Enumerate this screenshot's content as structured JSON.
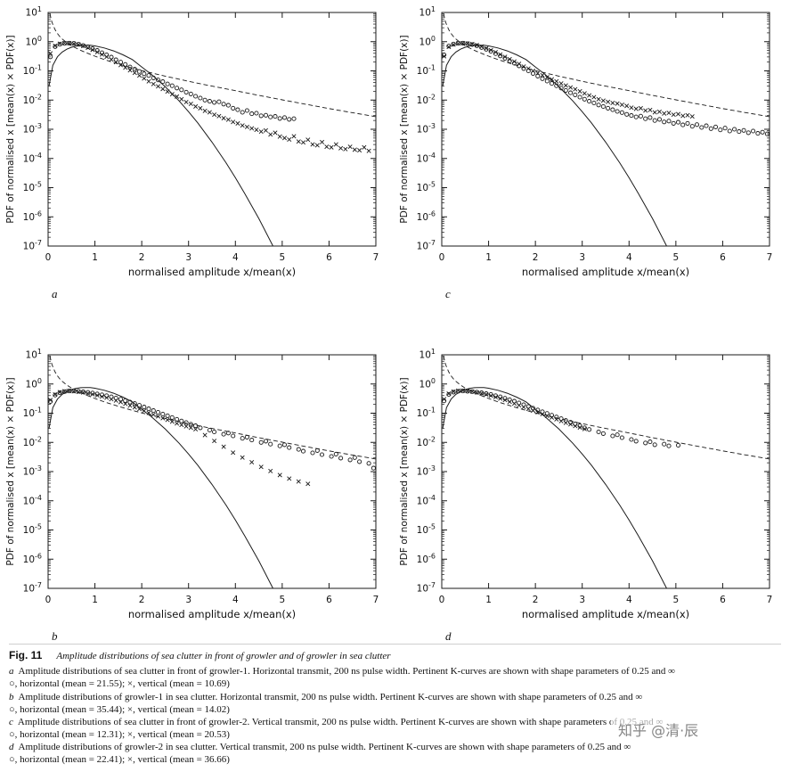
{
  "watermark": "知乎 @清·辰",
  "figure_caption": {
    "fig_label": "Fig. 11",
    "fig_title": "Amplitude distributions of sea clutter in front of growler and of growler in sea clutter",
    "entries": [
      {
        "letter": "a",
        "text": "Amplitude distributions of sea clutter in front of growler-1. Horizontal transmit, 200 ns pulse width. Pertinent K-curves are shown with shape parameters of 0.25 and ∞",
        "means": "○, horizontal (mean = 21.55); ×, vertical (mean = 10.69)"
      },
      {
        "letter": "b",
        "text": "Amplitude distributions of growler-1 in sea clutter. Horizontal transmit, 200 ns pulse width. Pertinent K-curves are shown with shape parameters of 0.25 and ∞",
        "means": "○, horizontal (mean = 35.44); ×, vertical (mean = 14.02)"
      },
      {
        "letter": "c",
        "text": "Amplitude distributions of sea clutter in front of growler-2. Vertical transmit, 200 ns pulse width. Pertinent K-curves are shown with shape parameters of 0.25 and ∞",
        "means": "○, horizontal (mean = 12.31); ×, vertical (mean = 20.53)"
      },
      {
        "letter": "d",
        "text": "Amplitude distributions of growler-2 in sea clutter. Vertical transmit, 200 ns pulse width. Pertinent K-curves are shown with shape parameters of 0.25 and ∞",
        "means": "○, horizontal (mean = 22.41); ×, vertical (mean = 36.66)"
      }
    ]
  },
  "axes": {
    "xlabel": "normalised amplitude x/mean(x)",
    "ylabel": "PDF of normalised x [mean(x) × PDF(x)]",
    "xticks": [
      0,
      1,
      2,
      3,
      4,
      5,
      6,
      7
    ],
    "xlim": [
      0,
      7
    ],
    "ylog_range": [
      -7,
      1
    ],
    "y_exponents": [
      1,
      0,
      -1,
      -2,
      -3,
      -4,
      -5,
      -6,
      -7
    ]
  },
  "chart_data": {
    "type": "scatter",
    "title": "Amplitude distributions of sea clutter in front of growler and of growler in sea clutter",
    "xlabel": "normalised amplitude x/mean(x)",
    "ylabel": "PDF of normalised x [mean(x) × PDF(x)]",
    "x_range": [
      0,
      7
    ],
    "y_log10_range": [
      -7,
      1
    ],
    "grid": false,
    "shared_curves": {
      "k_infinity": {
        "label": "K-curve shape parameter ∞ (Rayleigh)",
        "style": "solid",
        "points": [
          [
            0.02,
            0.031
          ],
          [
            0.1,
            0.155
          ],
          [
            0.2,
            0.304
          ],
          [
            0.3,
            0.44
          ],
          [
            0.4,
            0.554
          ],
          [
            0.5,
            0.645
          ],
          [
            0.6,
            0.71
          ],
          [
            0.7,
            0.748
          ],
          [
            0.8,
            0.76
          ],
          [
            0.9,
            0.75
          ],
          [
            1.0,
            0.716
          ],
          [
            1.2,
            0.611
          ],
          [
            1.4,
            0.482
          ],
          [
            1.6,
            0.355
          ],
          [
            1.8,
            0.245
          ],
          [
            2.0,
            0.136
          ],
          [
            2.2,
            0.0773
          ],
          [
            2.5,
            0.029
          ],
          [
            2.8,
            0.0093
          ],
          [
            3.0,
            0.004
          ],
          [
            3.2,
            0.00162
          ],
          [
            3.5,
            0.000363
          ],
          [
            3.8,
            7.1e-05
          ],
          [
            4.0,
            2.19e-05
          ],
          [
            4.2,
            6.3e-06
          ],
          [
            4.5,
            8.8e-07
          ],
          [
            4.8,
            1.03e-07
          ],
          [
            4.95,
            4e-08
          ]
        ]
      },
      "k_025": {
        "label": "K-curve shape parameter 0.25",
        "style": "dashed",
        "points": [
          [
            0.02,
            16
          ],
          [
            0.04,
            9
          ],
          [
            0.06,
            6.3
          ],
          [
            0.08,
            4.8
          ],
          [
            0.1,
            3.9
          ],
          [
            0.15,
            2.55
          ],
          [
            0.2,
            1.9
          ],
          [
            0.25,
            1.5
          ],
          [
            0.3,
            1.24
          ],
          [
            0.4,
            0.92
          ],
          [
            0.5,
            0.72
          ],
          [
            0.6,
            0.6
          ],
          [
            0.7,
            0.5
          ],
          [
            0.8,
            0.43
          ],
          [
            0.9,
            0.37
          ],
          [
            1.0,
            0.32
          ],
          [
            1.2,
            0.245
          ],
          [
            1.4,
            0.193
          ],
          [
            1.6,
            0.155
          ],
          [
            1.8,
            0.125
          ],
          [
            2.0,
            0.102
          ],
          [
            2.5,
            0.066
          ],
          [
            3.0,
            0.044
          ],
          [
            3.5,
            0.03
          ],
          [
            4.0,
            0.021
          ],
          [
            4.5,
            0.0145
          ],
          [
            5.0,
            0.0102
          ],
          [
            5.5,
            0.0072
          ],
          [
            6.0,
            0.0051
          ],
          [
            6.5,
            0.0037
          ],
          [
            7.0,
            0.0027
          ]
        ]
      }
    },
    "subplots": [
      {
        "id": "a",
        "letter": "a",
        "position": "top-left",
        "description": "sea clutter in front of growler-1, horizontal transmit",
        "series": [
          {
            "name": "horizontal",
            "marker": "circle",
            "mean": 21.55,
            "x_start": 0.05,
            "x_step": 0.1,
            "log10y": [
              -0.52,
              -0.17,
              -0.09,
              -0.06,
              -0.05,
              -0.06,
              -0.09,
              -0.13,
              -0.18,
              -0.24,
              -0.3,
              -0.38,
              -0.45,
              -0.53,
              -0.62,
              -0.7,
              -0.78,
              -0.87,
              -0.94,
              -1.02,
              -1.1,
              -1.16,
              -1.24,
              -1.31,
              -1.37,
              -1.45,
              -1.51,
              -1.59,
              -1.65,
              -1.73,
              -1.79,
              -1.87,
              -1.93,
              -2.0,
              -2.04,
              -2.08,
              -2.06,
              -2.14,
              -2.18,
              -2.28,
              -2.33,
              -2.42,
              -2.36,
              -2.47,
              -2.45,
              -2.54,
              -2.52,
              -2.58,
              -2.56,
              -2.63,
              -2.6,
              -2.66,
              -2.64
            ]
          },
          {
            "name": "vertical",
            "marker": "cross",
            "mean": 10.69,
            "x_start": 0.05,
            "x_step": 0.1,
            "log10y": [
              -0.4,
              -0.14,
              -0.07,
              -0.05,
              -0.05,
              -0.07,
              -0.1,
              -0.15,
              -0.21,
              -0.28,
              -0.36,
              -0.44,
              -0.52,
              -0.61,
              -0.7,
              -0.8,
              -0.89,
              -0.98,
              -1.07,
              -1.16,
              -1.26,
              -1.36,
              -1.45,
              -1.53,
              -1.62,
              -1.71,
              -1.8,
              -1.88,
              -1.97,
              -2.07,
              -2.13,
              -2.22,
              -2.28,
              -2.37,
              -2.42,
              -2.5,
              -2.55,
              -2.62,
              -2.67,
              -2.75,
              -2.8,
              -2.87,
              -2.92,
              -2.97,
              -3.02,
              -3.08,
              -3.04,
              -3.18,
              -3.12,
              -3.25,
              -3.3,
              -3.35,
              -3.24,
              -3.42,
              -3.45,
              -3.36,
              -3.52,
              -3.55,
              -3.44,
              -3.6,
              -3.62,
              -3.52,
              -3.65,
              -3.68,
              -3.6,
              -3.7,
              -3.72,
              -3.62,
              -3.74
            ]
          }
        ]
      },
      {
        "id": "b",
        "letter": "b",
        "position": "bottom-left",
        "description": "growler-1 in sea clutter, horizontal transmit",
        "series": [
          {
            "name": "horizontal",
            "marker": "circle",
            "mean": 35.44,
            "x_start": 0.05,
            "x_step": 0.1,
            "log10y": [
              -0.6,
              -0.38,
              -0.3,
              -0.26,
              -0.24,
              -0.24,
              -0.25,
              -0.27,
              -0.29,
              -0.31,
              -0.34,
              -0.37,
              -0.4,
              -0.44,
              -0.48,
              -0.52,
              -0.57,
              -0.62,
              -0.67,
              -0.73,
              -0.79,
              -0.85,
              -0.91,
              -0.97,
              -1.03,
              -1.09,
              -1.15,
              -1.21,
              -1.27,
              -1.32,
              -1.38,
              -1.43,
              -1.5,
              null,
              -1.58,
              -1.64,
              null,
              -1.72,
              -1.68,
              -1.78,
              null,
              -1.86,
              -1.82,
              -1.92,
              null,
              -2.0,
              -1.96,
              -2.06,
              null,
              -2.12,
              -2.08,
              -2.18,
              null,
              -2.24,
              -2.3,
              null,
              -2.36,
              -2.28,
              -2.42,
              null,
              -2.48,
              -2.4,
              -2.54,
              null,
              -2.6,
              -2.52,
              -2.66,
              null,
              -2.72,
              -2.88
            ]
          },
          {
            "name": "vertical",
            "marker": "cross",
            "mean": 14.02,
            "x_start": 0.05,
            "x_step": 0.1,
            "log10y": [
              -0.55,
              -0.36,
              -0.28,
              -0.25,
              -0.24,
              -0.25,
              -0.27,
              -0.29,
              -0.32,
              -0.35,
              -0.39,
              -0.43,
              -0.47,
              -0.52,
              -0.57,
              -0.62,
              -0.68,
              -0.74,
              -0.8,
              -0.86,
              -0.92,
              -0.99,
              -1.05,
              -1.11,
              -1.17,
              -1.23,
              -1.29,
              -1.35,
              -1.4,
              -1.45,
              -1.5,
              -1.55,
              null,
              -1.75,
              null,
              -1.95,
              null,
              -2.15,
              null,
              -2.35,
              null,
              -2.52,
              null,
              -2.68,
              null,
              -2.84,
              null,
              -2.98,
              null,
              -3.12,
              null,
              -3.24,
              null,
              -3.34,
              null,
              -3.42
            ]
          }
        ]
      },
      {
        "id": "c",
        "letter": "c",
        "position": "top-right",
        "description": "sea clutter in front of growler-2, vertical transmit",
        "series": [
          {
            "name": "horizontal",
            "marker": "circle",
            "mean": 12.31,
            "x_start": 0.05,
            "x_step": 0.1,
            "log10y": [
              -0.45,
              -0.15,
              -0.08,
              -0.05,
              -0.05,
              -0.07,
              -0.1,
              -0.14,
              -0.2,
              -0.26,
              -0.33,
              -0.41,
              -0.49,
              -0.57,
              -0.66,
              -0.74,
              -0.83,
              -0.92,
              -1.0,
              -1.09,
              -1.18,
              -1.27,
              -1.35,
              -1.43,
              -1.51,
              -1.59,
              -1.67,
              -1.75,
              -1.82,
              -1.9,
              -1.97,
              -2.04,
              -2.1,
              -2.17,
              -2.22,
              -2.28,
              -2.33,
              -2.39,
              -2.43,
              -2.49,
              -2.53,
              -2.58,
              -2.55,
              -2.64,
              -2.6,
              -2.7,
              -2.66,
              -2.75,
              -2.72,
              -2.8,
              -2.76,
              -2.85,
              -2.8,
              -2.9,
              -2.84,
              -2.94,
              -2.88,
              -2.98,
              -2.92,
              -3.02,
              -2.96,
              -3.06,
              -3.0,
              -3.08,
              -3.04,
              -3.12,
              -3.06,
              -3.14,
              -3.1,
              -3.16
            ]
          },
          {
            "name": "vertical",
            "marker": "cross",
            "mean": 20.53,
            "x_start": 0.05,
            "x_step": 0.1,
            "log10y": [
              -0.5,
              -0.18,
              -0.1,
              -0.06,
              -0.05,
              -0.06,
              -0.08,
              -0.12,
              -0.17,
              -0.23,
              -0.29,
              -0.36,
              -0.44,
              -0.52,
              -0.6,
              -0.68,
              -0.76,
              -0.85,
              -0.92,
              -1.0,
              -1.08,
              -1.15,
              -1.22,
              -1.29,
              -1.36,
              -1.43,
              -1.5,
              -1.57,
              -1.63,
              -1.7,
              -1.77,
              -1.84,
              -1.9,
              -1.97,
              -2.02,
              -2.06,
              -2.1,
              -2.12,
              -2.16,
              -2.2,
              -2.26,
              -2.3,
              -2.28,
              -2.36,
              -2.34,
              -2.42,
              -2.4,
              -2.46,
              -2.44,
              -2.5,
              -2.48,
              -2.54,
              -2.52,
              -2.56
            ]
          }
        ]
      },
      {
        "id": "d",
        "letter": "d",
        "position": "bottom-right",
        "description": "growler-2 in sea clutter, vertical transmit",
        "series": [
          {
            "name": "horizontal",
            "marker": "circle",
            "mean": 22.41,
            "x_start": 0.05,
            "x_step": 0.1,
            "log10y": [
              -0.58,
              -0.36,
              -0.28,
              -0.25,
              -0.24,
              -0.25,
              -0.26,
              -0.28,
              -0.3,
              -0.33,
              -0.36,
              -0.4,
              -0.44,
              -0.49,
              -0.54,
              -0.59,
              -0.65,
              -0.71,
              -0.77,
              -0.83,
              -0.89,
              -0.95,
              -1.01,
              -1.07,
              -1.13,
              -1.19,
              -1.25,
              -1.31,
              -1.37,
              -1.43,
              -1.5,
              -1.56,
              null,
              -1.64,
              -1.7,
              null,
              -1.78,
              -1.74,
              -1.84,
              null,
              -1.9,
              -1.96,
              null,
              -2.02,
              -1.98,
              -2.08,
              null,
              -2.06,
              -2.12,
              null,
              -2.1
            ]
          },
          {
            "name": "vertical",
            "marker": "cross",
            "mean": 36.66,
            "x_start": 0.05,
            "x_step": 0.1,
            "log10y": [
              -0.52,
              -0.33,
              -0.26,
              -0.23,
              -0.23,
              -0.24,
              -0.26,
              -0.29,
              -0.32,
              -0.36,
              -0.4,
              -0.45,
              -0.5,
              -0.55,
              -0.61,
              -0.67,
              -0.73,
              -0.79,
              -0.85,
              -0.91,
              -0.97,
              -1.03,
              -1.09,
              -1.15,
              -1.21,
              -1.27,
              -1.33,
              -1.38,
              -1.44,
              -1.49,
              -1.54
            ]
          }
        ]
      }
    ]
  }
}
